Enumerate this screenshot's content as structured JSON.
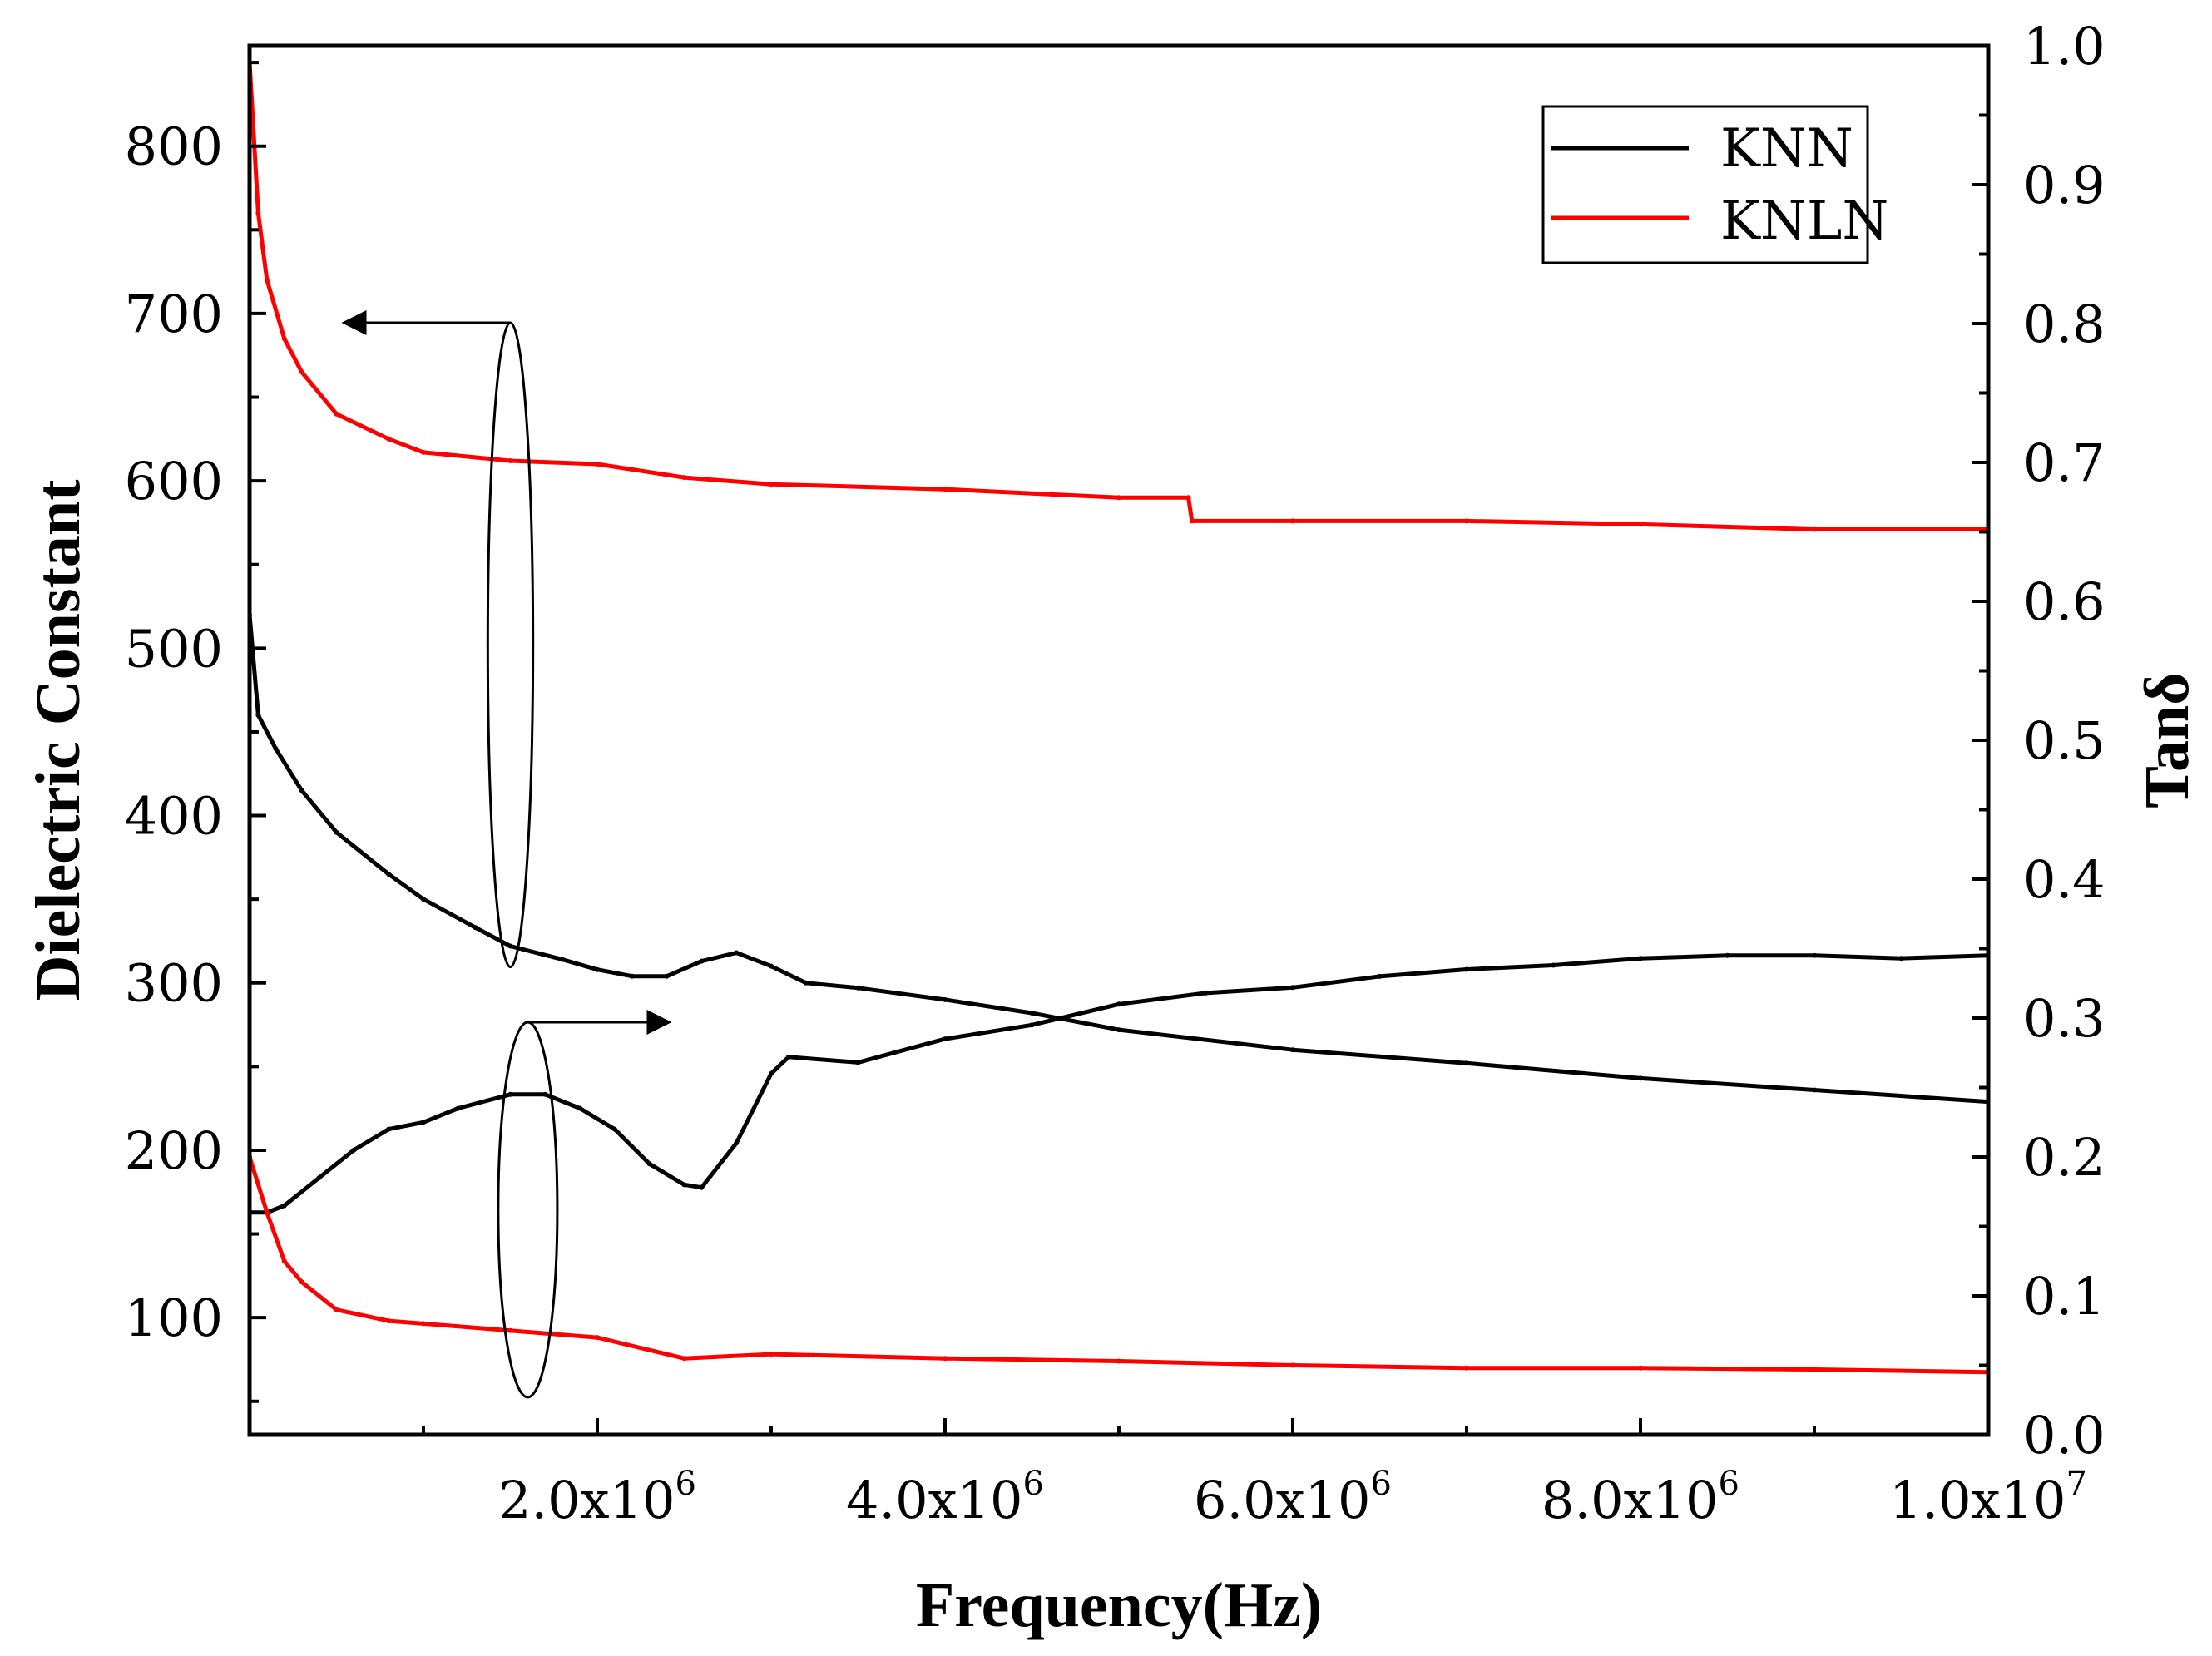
{
  "chart_data": {
    "type": "line",
    "title": "",
    "xlabel": "Frequency(Hz)",
    "ylabel_left": "Dielectric Constant",
    "ylabel_right": "Tanδ",
    "xlim": [
      0,
      10000000
    ],
    "ylim_left": [
      30,
      860
    ],
    "ylim_right": [
      0.0,
      1.0
    ],
    "x_ticks": [
      {
        "value": 2000000,
        "mantissa": "2.0x10",
        "exp": "6"
      },
      {
        "value": 4000000,
        "mantissa": "4.0x10",
        "exp": "6"
      },
      {
        "value": 6000000,
        "mantissa": "6.0x10",
        "exp": "6"
      },
      {
        "value": 8000000,
        "mantissa": "8.0x10",
        "exp": "6"
      },
      {
        "value": 10000000,
        "mantissa": "1.0x10",
        "exp": "7"
      }
    ],
    "y_left_ticks": [
      "100",
      "200",
      "300",
      "400",
      "500",
      "600",
      "700",
      "800"
    ],
    "y_right_ticks": [
      "0.0",
      "0.1",
      "0.2",
      "0.3",
      "0.4",
      "0.5",
      "0.6",
      "0.7",
      "0.8",
      "0.9",
      "1.0"
    ],
    "legend": {
      "position": "top-right",
      "entries": [
        {
          "name": "KNN",
          "color": "#000000"
        },
        {
          "name": "KNLN",
          "color": "#ff0000"
        }
      ]
    },
    "series": [
      {
        "name": "KNN",
        "quantity": "Dielectric Constant",
        "axis": "left",
        "color": "#000000",
        "points": [
          [
            0,
            520
          ],
          [
            50000,
            460
          ],
          [
            150000,
            440
          ],
          [
            300000,
            415
          ],
          [
            500000,
            390
          ],
          [
            800000,
            365
          ],
          [
            1000000,
            350
          ],
          [
            1300000,
            333
          ],
          [
            1500000,
            322
          ],
          [
            1800000,
            314
          ],
          [
            2000000,
            308
          ],
          [
            2200000,
            304
          ],
          [
            2400000,
            304
          ],
          [
            2600000,
            313
          ],
          [
            2800000,
            318
          ],
          [
            3000000,
            310
          ],
          [
            3200000,
            300
          ],
          [
            3500000,
            297
          ],
          [
            4000000,
            290
          ],
          [
            4500000,
            282
          ],
          [
            5000000,
            272
          ],
          [
            6000000,
            260
          ],
          [
            7000000,
            252
          ],
          [
            8000000,
            243
          ],
          [
            9000000,
            236
          ],
          [
            10000000,
            229
          ]
        ]
      },
      {
        "name": "KNLN",
        "quantity": "Dielectric Constant",
        "axis": "left",
        "color": "#ff0000",
        "points": [
          [
            0,
            850
          ],
          [
            50000,
            760
          ],
          [
            100000,
            720
          ],
          [
            200000,
            685
          ],
          [
            300000,
            665
          ],
          [
            500000,
            640
          ],
          [
            800000,
            625
          ],
          [
            1000000,
            617
          ],
          [
            1500000,
            612
          ],
          [
            2000000,
            610
          ],
          [
            2500000,
            602
          ],
          [
            3000000,
            598
          ],
          [
            4000000,
            595
          ],
          [
            5000000,
            590
          ],
          [
            5400000,
            590
          ],
          [
            5420000,
            576
          ],
          [
            6000000,
            576
          ],
          [
            7000000,
            576
          ],
          [
            8000000,
            574
          ],
          [
            9000000,
            571
          ],
          [
            10000000,
            571
          ]
        ]
      },
      {
        "name": "KNN",
        "quantity": "Tanδ",
        "axis": "right",
        "color": "#000000",
        "points": [
          [
            0,
            0.16
          ],
          [
            100000,
            0.16
          ],
          [
            200000,
            0.165
          ],
          [
            400000,
            0.185
          ],
          [
            600000,
            0.205
          ],
          [
            800000,
            0.22
          ],
          [
            1000000,
            0.225
          ],
          [
            1200000,
            0.235
          ],
          [
            1500000,
            0.245
          ],
          [
            1700000,
            0.245
          ],
          [
            1900000,
            0.235
          ],
          [
            2100000,
            0.22
          ],
          [
            2300000,
            0.195
          ],
          [
            2500000,
            0.18
          ],
          [
            2600000,
            0.178
          ],
          [
            2800000,
            0.21
          ],
          [
            3000000,
            0.26
          ],
          [
            3100000,
            0.272
          ],
          [
            3500000,
            0.268
          ],
          [
            4000000,
            0.285
          ],
          [
            4500000,
            0.295
          ],
          [
            5000000,
            0.31
          ],
          [
            5500000,
            0.318
          ],
          [
            6000000,
            0.322
          ],
          [
            6500000,
            0.33
          ],
          [
            7000000,
            0.335
          ],
          [
            7500000,
            0.338
          ],
          [
            8000000,
            0.343
          ],
          [
            8500000,
            0.345
          ],
          [
            9000000,
            0.345
          ],
          [
            9500000,
            0.343
          ],
          [
            10000000,
            0.345
          ]
        ]
      },
      {
        "name": "KNLN",
        "quantity": "Tanδ",
        "axis": "right",
        "color": "#ff0000",
        "points": [
          [
            0,
            0.2
          ],
          [
            100000,
            0.16
          ],
          [
            200000,
            0.125
          ],
          [
            300000,
            0.11
          ],
          [
            500000,
            0.09
          ],
          [
            800000,
            0.082
          ],
          [
            1000000,
            0.08
          ],
          [
            1500000,
            0.075
          ],
          [
            2000000,
            0.07
          ],
          [
            2500000,
            0.055
          ],
          [
            3000000,
            0.058
          ],
          [
            4000000,
            0.055
          ],
          [
            5000000,
            0.053
          ],
          [
            6000000,
            0.05
          ],
          [
            7000000,
            0.048
          ],
          [
            8000000,
            0.048
          ],
          [
            9000000,
            0.047
          ],
          [
            10000000,
            0.045
          ]
        ]
      }
    ],
    "annotations": [
      {
        "type": "ellipse-arrow",
        "direction": "left",
        "label": "arrow pointing to left axis",
        "center_x": 1500000,
        "center_left_value": 502,
        "width_x": 260000,
        "height_left_value": 385
      },
      {
        "type": "ellipse-arrow",
        "direction": "right",
        "label": "arrow pointing to right axis",
        "center_x": 1600000,
        "center_right_value": 0.162,
        "width_x": 340000,
        "height_right_value": 0.27
      }
    ]
  }
}
